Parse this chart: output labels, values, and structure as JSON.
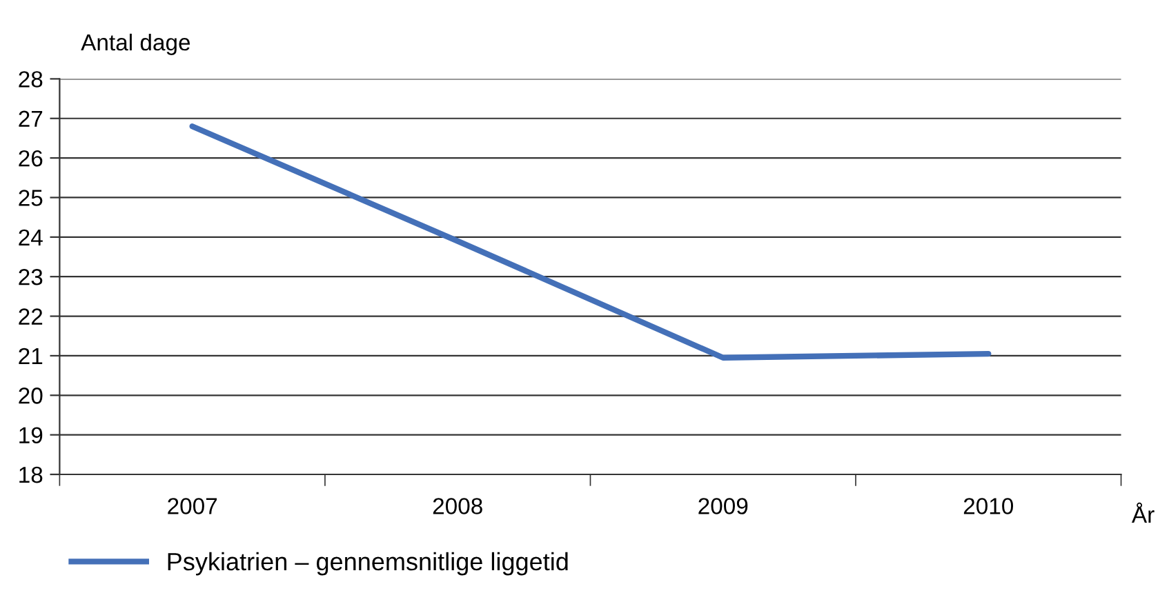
{
  "chart_data": {
    "type": "line",
    "ylabel": "Antal dage",
    "xlabel": "År",
    "categories": [
      "2007",
      "2008",
      "2009",
      "2010"
    ],
    "series": [
      {
        "name": "Psykiatrien – gennemsnitlige liggetid",
        "color": "#4470b8",
        "values": [
          26.8,
          23.9,
          20.95,
          21.05
        ]
      }
    ],
    "ylim": [
      18,
      28
    ],
    "yticks": [
      18,
      19,
      20,
      21,
      22,
      23,
      24,
      25,
      26,
      27,
      28
    ],
    "grid": "y",
    "legend": "bottom",
    "marker": "none",
    "line_style": "solid"
  }
}
